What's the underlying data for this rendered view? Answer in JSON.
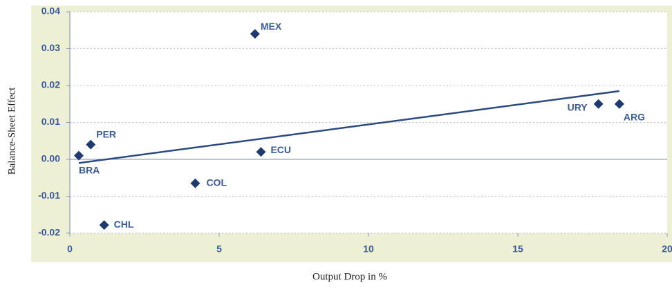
{
  "chart_data": {
    "type": "scatter",
    "x_label": "Output Drop in %",
    "y_label": "Balance-Sheet Effect",
    "labels": [
      "MEX",
      "PER",
      "BRA",
      "ECU",
      "COL",
      "CHL",
      "URY",
      "ARG"
    ],
    "x": [
      6.2,
      0.7,
      0.3,
      6.4,
      4.2,
      1.15,
      17.7,
      18.4
    ],
    "values": [
      0.034,
      0.004,
      0.001,
      0.002,
      -0.0065,
      -0.0178,
      0.015,
      0.015
    ],
    "color": "#1f3a6e",
    "trendline": {
      "x": [
        0.3,
        18.4
      ],
      "y": [
        -0.001,
        0.0185
      ],
      "color": "#2a4a80"
    },
    "xlim": [
      0,
      20
    ],
    "ylim": [
      -0.02,
      0.04
    ],
    "xticks": [
      0,
      5,
      10,
      15,
      20
    ],
    "yticks": [
      0.04,
      0.03,
      0.02,
      0.01,
      {
        "value": 0,
        "label": "0.00"
      },
      -0.01,
      -0.02
    ],
    "grid": true
  }
}
